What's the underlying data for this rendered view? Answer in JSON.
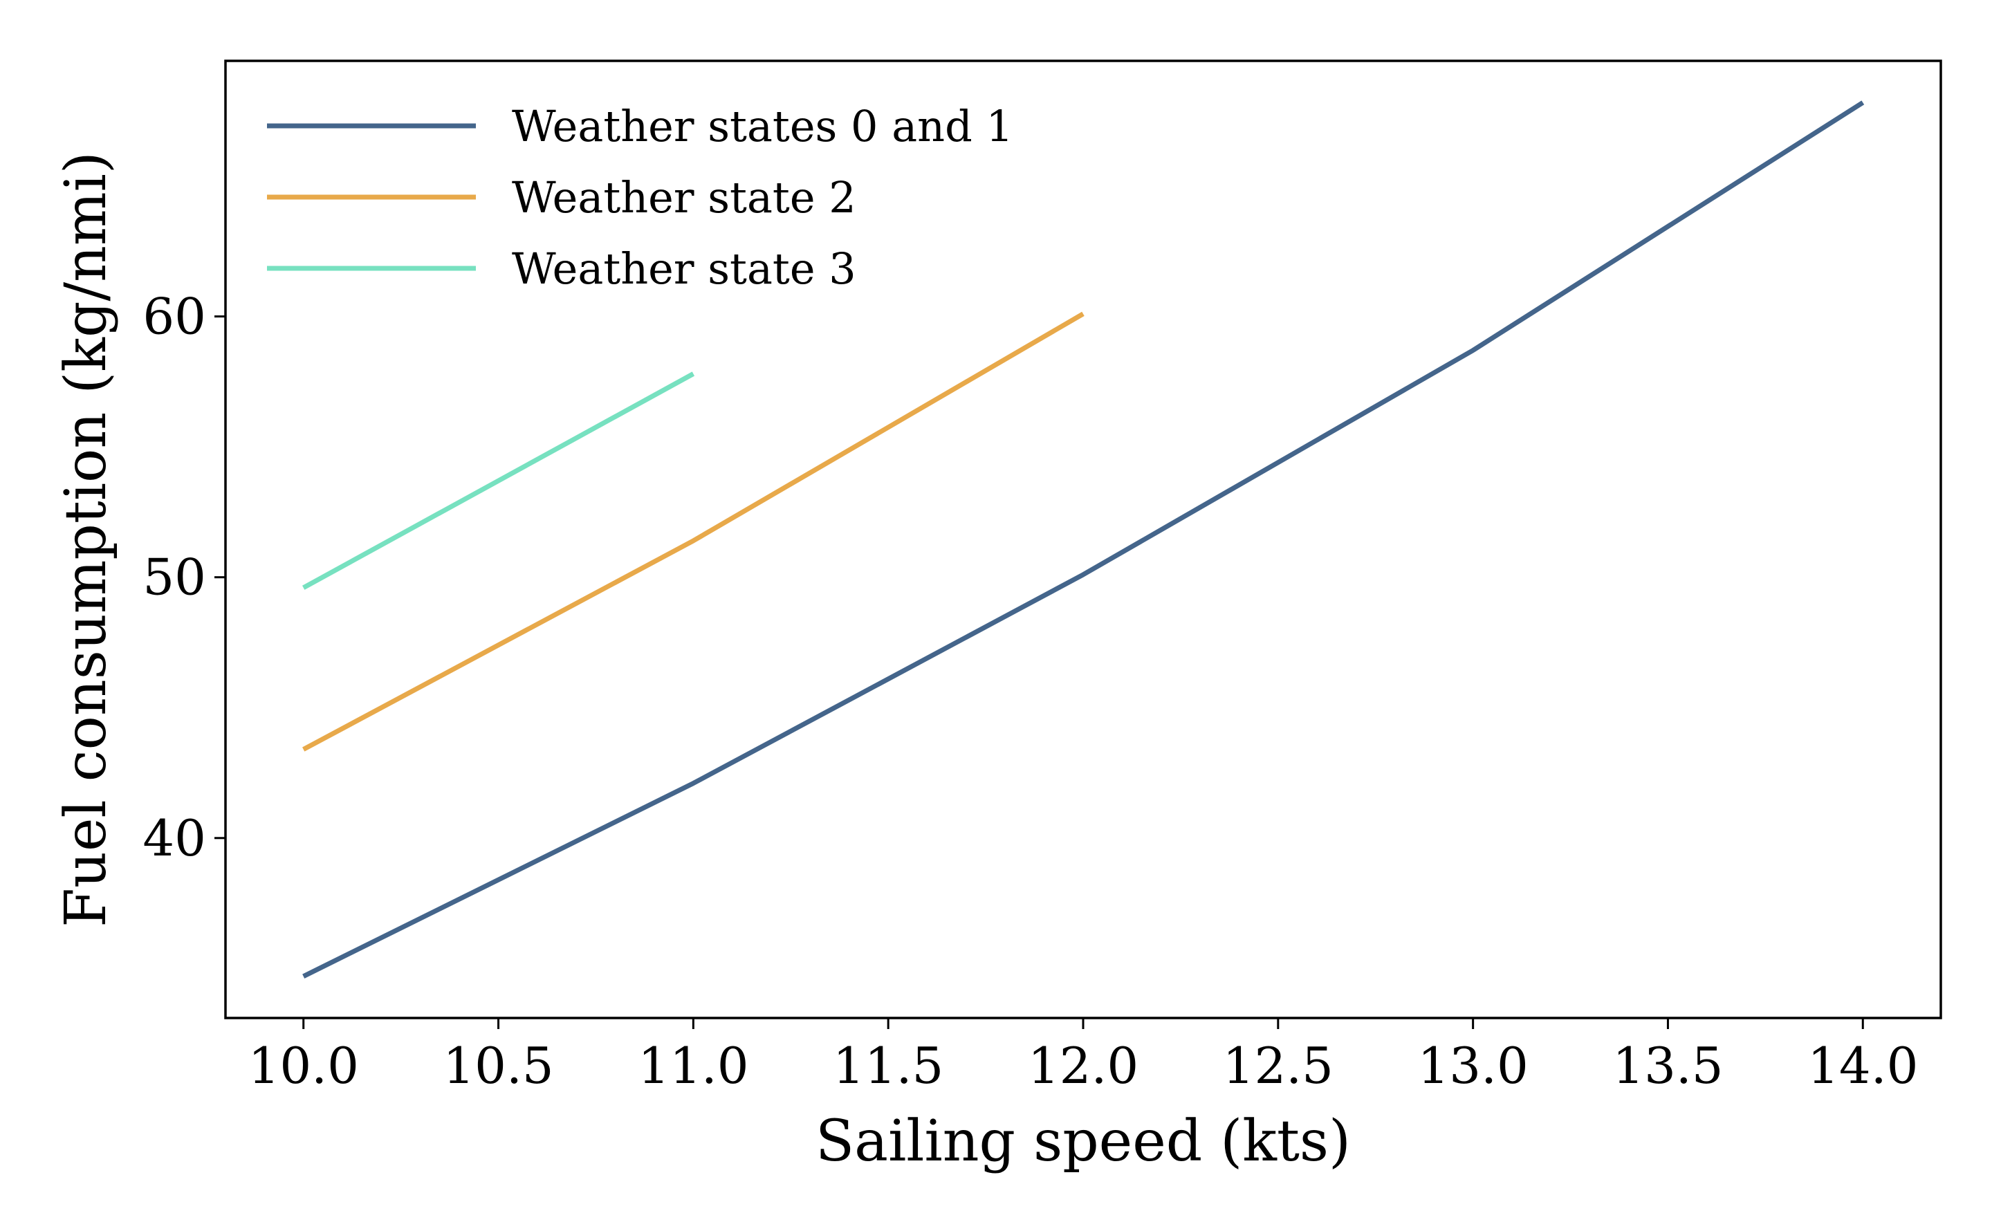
{
  "chart_data": {
    "type": "line",
    "title": "",
    "xlabel": "Sailing speed (kts)",
    "ylabel": "Fuel consumption (kg/nmi)",
    "xlim": [
      9.8,
      14.2
    ],
    "ylim": [
      33.1,
      69.8
    ],
    "x_ticks": [
      10.0,
      10.5,
      11.0,
      11.5,
      12.0,
      12.5,
      13.0,
      13.5,
      14.0
    ],
    "x_tick_labels": [
      "10.0",
      "10.5",
      "11.0",
      "11.5",
      "12.0",
      "12.5",
      "13.0",
      "13.5",
      "14.0"
    ],
    "y_ticks": [
      40,
      50,
      60
    ],
    "y_tick_labels": [
      "40",
      "50",
      "60"
    ],
    "grid": false,
    "legend_position": "top-left",
    "series": [
      {
        "name": "Weather states 0 and 1",
        "color": "#44658b",
        "x": [
          10,
          11,
          12,
          13,
          14
        ],
        "y": [
          34.7,
          42.1,
          50.1,
          58.7,
          68.2
        ]
      },
      {
        "name": "Weather state 2",
        "color": "#e8a94a",
        "x": [
          10,
          11,
          12
        ],
        "y": [
          43.4,
          51.4,
          60.1
        ]
      },
      {
        "name": "Weather state 3",
        "color": "#77e1c0",
        "x": [
          10,
          11
        ],
        "y": [
          49.6,
          57.8
        ]
      }
    ]
  }
}
